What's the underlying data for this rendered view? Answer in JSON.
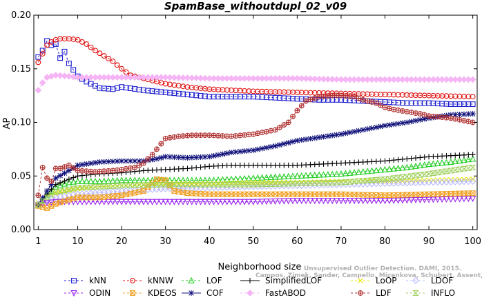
{
  "chart_data": {
    "type": "line",
    "title": "SpamBase_withoutdupl_02_v09",
    "xlabel": "Neighborhood size",
    "ylabel": "AP",
    "xlim": [
      0,
      101
    ],
    "ylim": [
      0.0,
      0.2
    ],
    "x_ticks": [
      1,
      10,
      20,
      30,
      40,
      50,
      60,
      70,
      80,
      90,
      100
    ],
    "y_ticks": [
      "0.00",
      "0.05",
      "0.10",
      "0.15",
      "0.20"
    ],
    "grid": false,
    "legend_position": "bottom",
    "credit_lines": [
      "Unsupervised Outlier Detection. DAMI, 2015.",
      "Campos, Zimek, Sander, Campello, Micenkova, Schubert, Assent, Houle"
    ],
    "series": [
      {
        "name": "kNN",
        "color": "#1f1fd0",
        "marker": "square",
        "dash": "3,3",
        "points": [
          [
            1,
            0.161
          ],
          [
            2,
            0.167
          ],
          [
            3,
            0.176
          ],
          [
            4,
            0.172
          ],
          [
            5,
            0.173
          ],
          [
            6,
            0.16
          ],
          [
            7,
            0.166
          ],
          [
            8,
            0.155
          ],
          [
            9,
            0.149
          ],
          [
            10,
            0.143
          ],
          [
            12,
            0.138
          ],
          [
            15,
            0.132
          ],
          [
            18,
            0.131
          ],
          [
            20,
            0.133
          ],
          [
            25,
            0.13
          ],
          [
            30,
            0.128
          ],
          [
            35,
            0.126
          ],
          [
            40,
            0.124
          ],
          [
            45,
            0.124
          ],
          [
            50,
            0.124
          ],
          [
            55,
            0.123
          ],
          [
            60,
            0.122
          ],
          [
            65,
            0.121
          ],
          [
            70,
            0.121
          ],
          [
            75,
            0.12
          ],
          [
            80,
            0.119
          ],
          [
            85,
            0.118
          ],
          [
            90,
            0.118
          ],
          [
            95,
            0.117
          ],
          [
            100,
            0.117
          ]
        ]
      },
      {
        "name": "kNNW",
        "color": "#e01010",
        "marker": "circle",
        "dash": "3,3",
        "points": [
          [
            1,
            0.156
          ],
          [
            2,
            0.164
          ],
          [
            3,
            0.172
          ],
          [
            4,
            0.175
          ],
          [
            5,
            0.177
          ],
          [
            6,
            0.178
          ],
          [
            8,
            0.178
          ],
          [
            10,
            0.177
          ],
          [
            12,
            0.173
          ],
          [
            14,
            0.167
          ],
          [
            16,
            0.162
          ],
          [
            18,
            0.157
          ],
          [
            20,
            0.15
          ],
          [
            22,
            0.144
          ],
          [
            25,
            0.141
          ],
          [
            30,
            0.136
          ],
          [
            35,
            0.133
          ],
          [
            40,
            0.131
          ],
          [
            50,
            0.129
          ],
          [
            60,
            0.128
          ],
          [
            70,
            0.127
          ],
          [
            80,
            0.126
          ],
          [
            90,
            0.125
          ],
          [
            100,
            0.124
          ]
        ]
      },
      {
        "name": "LOF",
        "color": "#22cc22",
        "marker": "triangle-up",
        "dash": "3,3",
        "points": [
          [
            1,
            0.023
          ],
          [
            3,
            0.032
          ],
          [
            5,
            0.04
          ],
          [
            8,
            0.044
          ],
          [
            10,
            0.045
          ],
          [
            15,
            0.045
          ],
          [
            20,
            0.046
          ],
          [
            25,
            0.046
          ],
          [
            30,
            0.046
          ],
          [
            35,
            0.046
          ],
          [
            40,
            0.046
          ],
          [
            45,
            0.047
          ],
          [
            50,
            0.048
          ],
          [
            55,
            0.049
          ],
          [
            60,
            0.05
          ],
          [
            65,
            0.051
          ],
          [
            70,
            0.052
          ],
          [
            75,
            0.054
          ],
          [
            80,
            0.056
          ],
          [
            85,
            0.058
          ],
          [
            90,
            0.061
          ],
          [
            95,
            0.063
          ],
          [
            100,
            0.066
          ]
        ]
      },
      {
        "name": "SimplifiedLOF",
        "color": "#000000",
        "marker": "plus",
        "dash": "",
        "points": [
          [
            1,
            0.023
          ],
          [
            3,
            0.033
          ],
          [
            5,
            0.042
          ],
          [
            8,
            0.047
          ],
          [
            10,
            0.05
          ],
          [
            15,
            0.052
          ],
          [
            20,
            0.053
          ],
          [
            25,
            0.055
          ],
          [
            30,
            0.056
          ],
          [
            35,
            0.057
          ],
          [
            40,
            0.059
          ],
          [
            45,
            0.06
          ],
          [
            50,
            0.06
          ],
          [
            55,
            0.06
          ],
          [
            60,
            0.06
          ],
          [
            65,
            0.061
          ],
          [
            70,
            0.062
          ],
          [
            75,
            0.063
          ],
          [
            80,
            0.064
          ],
          [
            85,
            0.066
          ],
          [
            90,
            0.068
          ],
          [
            95,
            0.069
          ],
          [
            100,
            0.07
          ]
        ]
      },
      {
        "name": "LoOP",
        "color": "#e8e800",
        "marker": "x",
        "dash": "3,3",
        "points": [
          [
            1,
            0.025
          ],
          [
            3,
            0.03
          ],
          [
            5,
            0.034
          ],
          [
            10,
            0.038
          ],
          [
            15,
            0.04
          ],
          [
            20,
            0.041
          ],
          [
            25,
            0.042
          ],
          [
            30,
            0.043
          ],
          [
            40,
            0.043
          ],
          [
            50,
            0.044
          ],
          [
            60,
            0.044
          ],
          [
            70,
            0.045
          ],
          [
            80,
            0.045
          ],
          [
            90,
            0.046
          ],
          [
            100,
            0.047
          ]
        ]
      },
      {
        "name": "LDOF",
        "color": "#b8b8ff",
        "marker": "diamond",
        "dash": "3,3",
        "points": [
          [
            1,
            0.024
          ],
          [
            3,
            0.028
          ],
          [
            5,
            0.03
          ],
          [
            10,
            0.033
          ],
          [
            20,
            0.036
          ],
          [
            30,
            0.038
          ],
          [
            40,
            0.039
          ],
          [
            50,
            0.04
          ],
          [
            60,
            0.041
          ],
          [
            70,
            0.042
          ],
          [
            80,
            0.043
          ],
          [
            90,
            0.044
          ],
          [
            100,
            0.045
          ]
        ]
      },
      {
        "name": "ODIN",
        "color": "#9922ee",
        "marker": "triangle-down",
        "dash": "3,3",
        "points": [
          [
            1,
            0.023
          ],
          [
            3,
            0.025
          ],
          [
            5,
            0.026
          ],
          [
            10,
            0.026
          ],
          [
            20,
            0.026
          ],
          [
            30,
            0.026
          ],
          [
            40,
            0.026
          ],
          [
            50,
            0.026
          ],
          [
            60,
            0.027
          ],
          [
            70,
            0.027
          ],
          [
            80,
            0.027
          ],
          [
            90,
            0.028
          ],
          [
            100,
            0.029
          ]
        ]
      },
      {
        "name": "KDEOS",
        "color": "#f0a020",
        "marker": "square-x",
        "dash": "3,3",
        "points": [
          [
            1,
            0.022
          ],
          [
            2,
            0.021
          ],
          [
            3,
            0.02
          ],
          [
            5,
            0.024
          ],
          [
            8,
            0.028
          ],
          [
            10,
            0.03
          ],
          [
            15,
            0.03
          ],
          [
            20,
            0.032
          ],
          [
            25,
            0.036
          ],
          [
            28,
            0.047
          ],
          [
            30,
            0.046
          ],
          [
            32,
            0.036
          ],
          [
            35,
            0.034
          ],
          [
            40,
            0.033
          ],
          [
            50,
            0.033
          ],
          [
            60,
            0.033
          ],
          [
            70,
            0.033
          ],
          [
            80,
            0.032
          ],
          [
            90,
            0.033
          ],
          [
            100,
            0.034
          ]
        ]
      },
      {
        "name": "COF",
        "color": "#10107a",
        "marker": "star",
        "dash": "",
        "points": [
          [
            1,
            0.023
          ],
          [
            3,
            0.036
          ],
          [
            5,
            0.048
          ],
          [
            8,
            0.055
          ],
          [
            10,
            0.06
          ],
          [
            15,
            0.063
          ],
          [
            20,
            0.064
          ],
          [
            25,
            0.064
          ],
          [
            28,
            0.066
          ],
          [
            30,
            0.068
          ],
          [
            35,
            0.067
          ],
          [
            40,
            0.068
          ],
          [
            45,
            0.072
          ],
          [
            50,
            0.074
          ],
          [
            55,
            0.078
          ],
          [
            60,
            0.083
          ],
          [
            65,
            0.086
          ],
          [
            70,
            0.089
          ],
          [
            75,
            0.093
          ],
          [
            80,
            0.097
          ],
          [
            85,
            0.1
          ],
          [
            90,
            0.104
          ],
          [
            95,
            0.107
          ],
          [
            100,
            0.108
          ]
        ]
      },
      {
        "name": "FastABOD",
        "color": "#f5b5f5",
        "marker": "diamond-filled",
        "dash": "3,3",
        "points": [
          [
            1,
            0.13
          ],
          [
            2,
            0.137
          ],
          [
            3,
            0.142
          ],
          [
            5,
            0.144
          ],
          [
            8,
            0.143
          ],
          [
            10,
            0.142
          ],
          [
            15,
            0.142
          ],
          [
            20,
            0.142
          ],
          [
            30,
            0.142
          ],
          [
            40,
            0.141
          ],
          [
            50,
            0.141
          ],
          [
            60,
            0.141
          ],
          [
            70,
            0.14
          ],
          [
            80,
            0.14
          ],
          [
            90,
            0.14
          ],
          [
            100,
            0.14
          ]
        ]
      },
      {
        "name": "LDF",
        "color": "#b03030",
        "marker": "circle-plus",
        "dash": "3,3",
        "points": [
          [
            1,
            0.032
          ],
          [
            2,
            0.058
          ],
          [
            3,
            0.048
          ],
          [
            4,
            0.045
          ],
          [
            5,
            0.057
          ],
          [
            6,
            0.057
          ],
          [
            8,
            0.06
          ],
          [
            10,
            0.055
          ],
          [
            14,
            0.054
          ],
          [
            18,
            0.055
          ],
          [
            20,
            0.056
          ],
          [
            23,
            0.058
          ],
          [
            25,
            0.062
          ],
          [
            27,
            0.07
          ],
          [
            30,
            0.085
          ],
          [
            33,
            0.087
          ],
          [
            36,
            0.088
          ],
          [
            40,
            0.088
          ],
          [
            45,
            0.087
          ],
          [
            50,
            0.089
          ],
          [
            55,
            0.093
          ],
          [
            58,
            0.1
          ],
          [
            60,
            0.111
          ],
          [
            62,
            0.12
          ],
          [
            65,
            0.124
          ],
          [
            68,
            0.125
          ],
          [
            70,
            0.125
          ],
          [
            73,
            0.124
          ],
          [
            75,
            0.121
          ],
          [
            78,
            0.118
          ],
          [
            80,
            0.114
          ],
          [
            82,
            0.112
          ],
          [
            85,
            0.11
          ],
          [
            88,
            0.108
          ],
          [
            90,
            0.106
          ],
          [
            95,
            0.104
          ],
          [
            100,
            0.1
          ]
        ]
      },
      {
        "name": "INFLO",
        "color": "#a0d060",
        "marker": "hourglass",
        "dash": "3,3",
        "points": [
          [
            1,
            0.023
          ],
          [
            3,
            0.03
          ],
          [
            5,
            0.035
          ],
          [
            10,
            0.039
          ],
          [
            20,
            0.041
          ],
          [
            30,
            0.042
          ],
          [
            40,
            0.042
          ],
          [
            50,
            0.042
          ],
          [
            60,
            0.043
          ],
          [
            70,
            0.044
          ],
          [
            80,
            0.047
          ],
          [
            90,
            0.052
          ],
          [
            95,
            0.055
          ],
          [
            100,
            0.058
          ]
        ]
      }
    ]
  }
}
